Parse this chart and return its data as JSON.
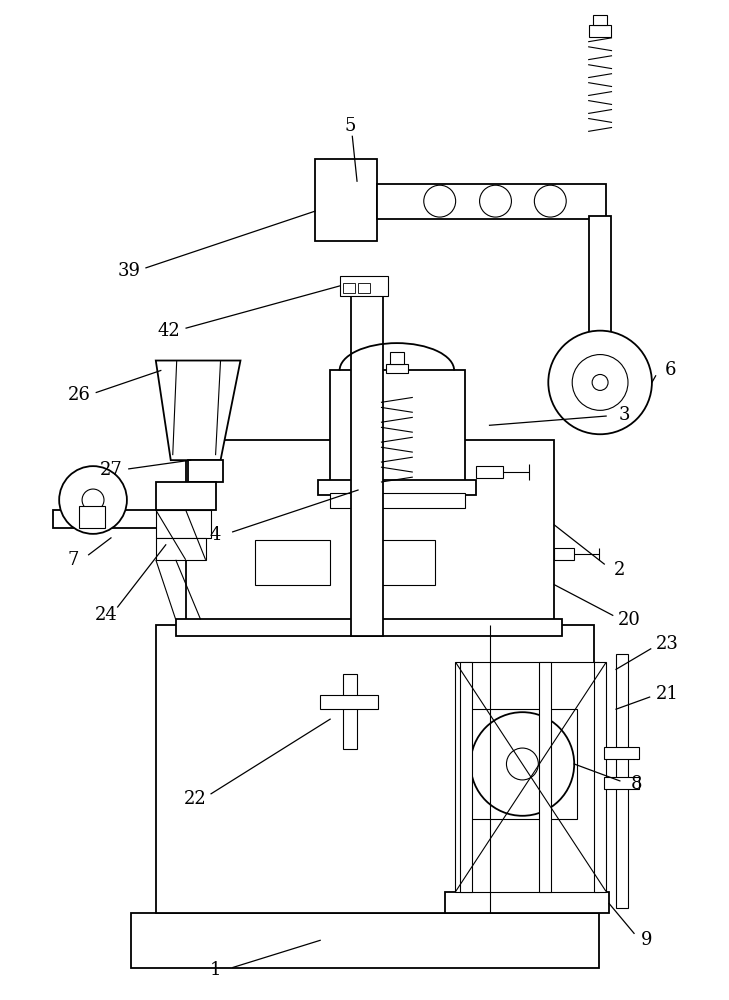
{
  "bg_color": "#ffffff",
  "lc": "#000000",
  "lw": 1.3,
  "lw_thin": 0.8,
  "fig_width": 7.29,
  "fig_height": 10.0
}
